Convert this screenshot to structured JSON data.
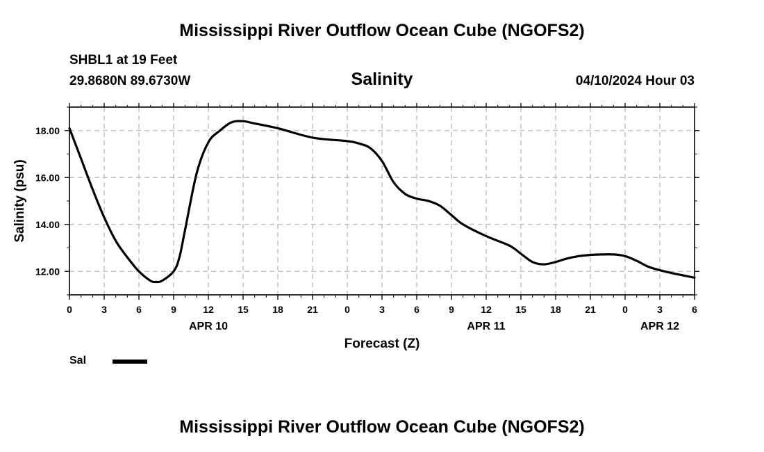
{
  "header": {
    "title": "Mississippi River Outflow Ocean Cube (NGOFS2)",
    "station": "SHBL1 at 19 Feet",
    "coords": "29.8680N  89.6730W",
    "date_hour": "04/10/2024 Hour 03"
  },
  "footer": {
    "title": "Mississippi River Outflow Ocean Cube (NGOFS2)"
  },
  "legend": {
    "label": "Sal",
    "color": "#000000"
  },
  "chart_data": {
    "type": "line",
    "title": "Salinity",
    "xlabel": "Forecast (Z)",
    "ylabel": "Salinity (psu)",
    "xlim": [
      0,
      54
    ],
    "ylim": [
      11.0,
      19.0
    ],
    "grid": true,
    "x_ticks": [
      0,
      3,
      6,
      9,
      12,
      15,
      18,
      21,
      24,
      27,
      30,
      33,
      36,
      39,
      42,
      45,
      48,
      51,
      54
    ],
    "x_tick_labels": [
      "0",
      "3",
      "6",
      "9",
      "12",
      "15",
      "18",
      "21",
      "0",
      "3",
      "6",
      "9",
      "12",
      "15",
      "18",
      "21",
      "0",
      "3",
      "6"
    ],
    "y_ticks": [
      12.0,
      14.0,
      16.0,
      18.0
    ],
    "y_tick_labels": [
      "12.00",
      "14.00",
      "16.00",
      "18.00"
    ],
    "date_labels": [
      {
        "x": 12,
        "text": "APR 10"
      },
      {
        "x": 36,
        "text": "APR 11"
      },
      {
        "x": 51,
        "text": "APR 12"
      }
    ],
    "series": [
      {
        "name": "Sal",
        "x": [
          0,
          1,
          2,
          3,
          4,
          5,
          6,
          7,
          7.5,
          8,
          9,
          9.5,
          10,
          11,
          12,
          13,
          14,
          15,
          16,
          18,
          21,
          24,
          25,
          26,
          27,
          28,
          29,
          30,
          31,
          32,
          33,
          34,
          36,
          38,
          39,
          40,
          41,
          42,
          43,
          44,
          45,
          46,
          47,
          48,
          49,
          50,
          51,
          52,
          53,
          54
        ],
        "y": [
          18.1,
          16.8,
          15.5,
          14.3,
          13.3,
          12.6,
          12.0,
          11.6,
          11.55,
          11.6,
          12.0,
          12.6,
          13.8,
          16.2,
          17.5,
          18.0,
          18.35,
          18.4,
          18.3,
          18.1,
          17.7,
          17.55,
          17.45,
          17.25,
          16.7,
          15.8,
          15.3,
          15.1,
          15.0,
          14.8,
          14.4,
          14.0,
          13.5,
          13.1,
          12.75,
          12.4,
          12.3,
          12.4,
          12.55,
          12.65,
          12.7,
          12.72,
          12.72,
          12.65,
          12.45,
          12.2,
          12.05,
          11.93,
          11.83,
          11.73
        ]
      }
    ]
  }
}
